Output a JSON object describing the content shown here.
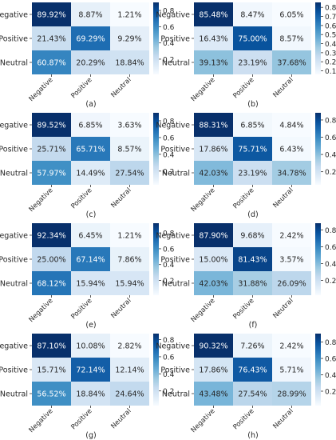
{
  "colormap": [
    "#f7fbff",
    "#deebf7",
    "#c6dbef",
    "#9ecae1",
    "#6baed6",
    "#4292c6",
    "#2171b5",
    "#08519c",
    "#08306b"
  ],
  "chart_data": [
    {
      "type": "heatmap",
      "caption": "(a)",
      "rows": [
        "Negative",
        "Positive",
        "Neutral"
      ],
      "cols": [
        "Negative",
        "Positive",
        "Neutral"
      ],
      "values": [
        [
          89.92,
          8.87,
          1.21
        ],
        [
          21.43,
          69.29,
          9.29
        ],
        [
          60.87,
          20.29,
          18.84
        ]
      ],
      "labels": [
        [
          "89.92%",
          "8.87%",
          "1.21%"
        ],
        [
          "21.43%",
          "69.29%",
          "9.29%"
        ],
        [
          "60.87%",
          "20.29%",
          "18.84%"
        ]
      ],
      "colorbar": {
        "ticks": [
          "0.8",
          "0.6",
          "0.4",
          "0.2"
        ],
        "tick_values": [
          0.8,
          0.6,
          0.4,
          0.2
        ],
        "range": [
          0.0121,
          0.8992
        ]
      }
    },
    {
      "type": "heatmap",
      "caption": "(b)",
      "rows": [
        "Negative",
        "Positive",
        "Neutral"
      ],
      "cols": [
        "Negative",
        "Positive",
        "Neutral"
      ],
      "values": [
        [
          85.48,
          8.47,
          6.05
        ],
        [
          16.43,
          75.0,
          8.57
        ],
        [
          39.13,
          23.19,
          37.68
        ]
      ],
      "labels": [
        [
          "85.48%",
          "8.47%",
          "6.05%"
        ],
        [
          "16.43%",
          "75.00%",
          "8.57%"
        ],
        [
          "39.13%",
          "23.19%",
          "37.68%"
        ]
      ],
      "colorbar": {
        "ticks": [
          "0.8",
          "0.7",
          "0.6",
          "0.5",
          "0.4",
          "0.3",
          "0.2",
          "0.1"
        ],
        "tick_values": [
          0.8,
          0.7,
          0.6,
          0.5,
          0.4,
          0.3,
          0.2,
          0.1
        ],
        "range": [
          0.0605,
          0.8548
        ]
      }
    },
    {
      "type": "heatmap",
      "caption": "(c)",
      "rows": [
        "Negative",
        "Positive",
        "Neutral"
      ],
      "cols": [
        "Negative",
        "Positive",
        "Neutral"
      ],
      "values": [
        [
          89.52,
          6.85,
          3.63
        ],
        [
          25.71,
          65.71,
          8.57
        ],
        [
          57.97,
          14.49,
          27.54
        ]
      ],
      "labels": [
        [
          "89.52%",
          "6.85%",
          "3.63%"
        ],
        [
          "25.71%",
          "65.71%",
          "8.57%"
        ],
        [
          "57.97%",
          "14.49%",
          "27.54%"
        ]
      ],
      "colorbar": {
        "ticks": [
          "0.8",
          "0.6",
          "0.4",
          "0.2"
        ],
        "tick_values": [
          0.8,
          0.6,
          0.4,
          0.2
        ],
        "range": [
          0.0363,
          0.8952
        ]
      }
    },
    {
      "type": "heatmap",
      "caption": "(d)",
      "rows": [
        "Negative",
        "Positive",
        "Neutral"
      ],
      "cols": [
        "Negative",
        "Positive",
        "Neutral"
      ],
      "values": [
        [
          88.31,
          6.85,
          4.84
        ],
        [
          17.86,
          75.71,
          6.43
        ],
        [
          42.03,
          23.19,
          34.78
        ]
      ],
      "labels": [
        [
          "88.31%",
          "6.85%",
          "4.84%"
        ],
        [
          "17.86%",
          "75.71%",
          "6.43%"
        ],
        [
          "42.03%",
          "23.19%",
          "34.78%"
        ]
      ],
      "colorbar": {
        "ticks": [
          "0.8",
          "0.6",
          "0.4",
          "0.2"
        ],
        "tick_values": [
          0.8,
          0.6,
          0.4,
          0.2
        ],
        "range": [
          0.0484,
          0.8831
        ]
      }
    },
    {
      "type": "heatmap",
      "caption": "(e)",
      "rows": [
        "Negative",
        "Positive",
        "Neutral"
      ],
      "cols": [
        "Negative",
        "Positive",
        "Neutral"
      ],
      "values": [
        [
          92.34,
          6.45,
          1.21
        ],
        [
          25.0,
          67.14,
          7.86
        ],
        [
          68.12,
          15.94,
          15.94
        ]
      ],
      "labels": [
        [
          "92.34%",
          "6.45%",
          "1.21%"
        ],
        [
          "25.00%",
          "67.14%",
          "7.86%"
        ],
        [
          "68.12%",
          "15.94%",
          "15.94%"
        ]
      ],
      "colorbar": {
        "ticks": [
          "0.8",
          "0.6",
          "0.4",
          "0.2"
        ],
        "tick_values": [
          0.8,
          0.6,
          0.4,
          0.2
        ],
        "range": [
          0.0121,
          0.9234
        ]
      }
    },
    {
      "type": "heatmap",
      "caption": "(f)",
      "rows": [
        "Negative",
        "Positive",
        "Neutral"
      ],
      "cols": [
        "Negative",
        "Positive",
        "Neutral"
      ],
      "values": [
        [
          87.9,
          9.68,
          2.42
        ],
        [
          15.0,
          81.43,
          3.57
        ],
        [
          42.03,
          31.88,
          26.09
        ]
      ],
      "labels": [
        [
          "87.90%",
          "9.68%",
          "2.42%"
        ],
        [
          "15.00%",
          "81.43%",
          "3.57%"
        ],
        [
          "42.03%",
          "31.88%",
          "26.09%"
        ]
      ],
      "colorbar": {
        "ticks": [
          "0.8",
          "0.6",
          "0.4",
          "0.2"
        ],
        "tick_values": [
          0.8,
          0.6,
          0.4,
          0.2
        ],
        "range": [
          0.0242,
          0.879
        ]
      }
    },
    {
      "type": "heatmap",
      "caption": "(g)",
      "rows": [
        "Negative",
        "Positive",
        "Neutral"
      ],
      "cols": [
        "Negative",
        "Positive",
        "Neutral"
      ],
      "values": [
        [
          87.1,
          10.08,
          2.82
        ],
        [
          15.71,
          72.14,
          12.14
        ],
        [
          56.52,
          18.84,
          24.64
        ]
      ],
      "labels": [
        [
          "87.10%",
          "10.08%",
          "2.82%"
        ],
        [
          "15.71%",
          "72.14%",
          "12.14%"
        ],
        [
          "56.52%",
          "18.84%",
          "24.64%"
        ]
      ],
      "colorbar": {
        "ticks": [
          "0.8",
          "0.6",
          "0.4",
          "0.2"
        ],
        "tick_values": [
          0.8,
          0.6,
          0.4,
          0.2
        ],
        "range": [
          0.0282,
          0.871
        ]
      }
    },
    {
      "type": "heatmap",
      "caption": "(h)",
      "rows": [
        "Negative",
        "Positive",
        "Neutral"
      ],
      "cols": [
        "Negative",
        "Positive",
        "Neutral"
      ],
      "values": [
        [
          90.32,
          7.26,
          2.42
        ],
        [
          17.86,
          76.43,
          5.71
        ],
        [
          43.48,
          27.54,
          28.99
        ]
      ],
      "labels": [
        [
          "90.32%",
          "7.26%",
          "2.42%"
        ],
        [
          "17.86%",
          "76.43%",
          "5.71%"
        ],
        [
          "43.48%",
          "27.54%",
          "28.99%"
        ]
      ],
      "colorbar": {
        "ticks": [
          "0.8",
          "0.6",
          "0.4",
          "0.2"
        ],
        "tick_values": [
          0.8,
          0.6,
          0.4,
          0.2
        ],
        "range": [
          0.0242,
          0.9032
        ]
      }
    }
  ]
}
